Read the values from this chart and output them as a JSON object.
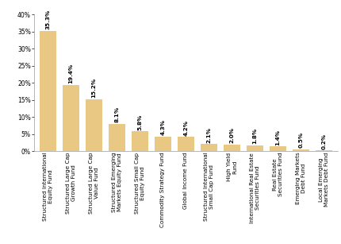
{
  "categories": [
    "Structured International\nEquity Fund",
    "Structured Large Cap\nGrowth Fund",
    "Structured Large Cap\nValue Fund",
    "Structured Emerging\nMarkets Equity Fund",
    "Structured Small Cap\nEquity Fund",
    "Commodity Strategy Fund",
    "Global Income Fund",
    "Structured International\nSmall Cap Fund",
    "High Yield\nFund",
    "International Real Estate\nSecurities Fund",
    "Real Estate\nSecurities Fund",
    "Emerging Markets\nDebt Fund",
    "Local Emerging\nMarkets Debt Fund"
  ],
  "values": [
    35.3,
    19.4,
    15.2,
    8.1,
    5.8,
    4.3,
    4.2,
    2.1,
    2.0,
    1.8,
    1.4,
    0.5,
    0.2
  ],
  "labels": [
    "35.3%",
    "19.4%",
    "15.2%",
    "8.1%",
    "5.8%",
    "4.3%",
    "4.2%",
    "2.1%",
    "2.0%",
    "1.8%",
    "1.4%",
    "0.5%",
    "0.2%"
  ],
  "bar_color": "#E8C882",
  "background_color": "#FFFFFF",
  "ylim": [
    0,
    40
  ],
  "yticks": [
    0,
    5,
    10,
    15,
    20,
    25,
    30,
    35,
    40
  ],
  "tick_fontsize": 5.5,
  "bar_label_fontsize": 5.2,
  "xlabel_fontsize": 5.2,
  "bar_width": 0.72
}
